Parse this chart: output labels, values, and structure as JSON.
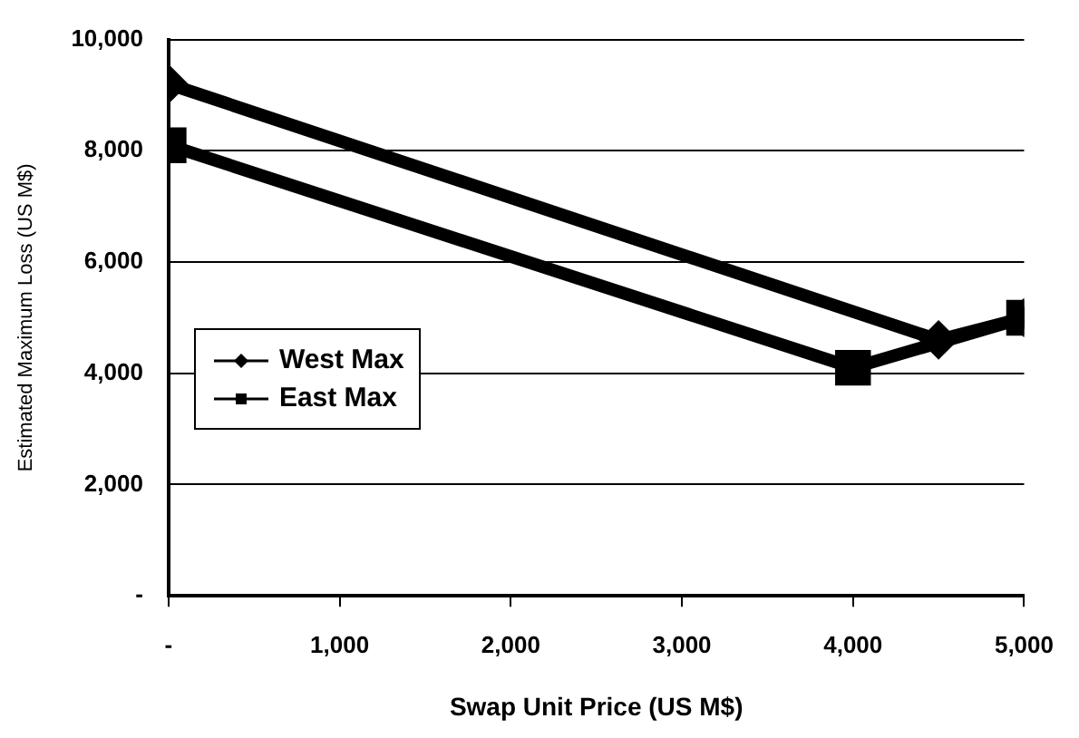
{
  "chart_data": {
    "type": "line",
    "xlabel": "Swap Unit Price (US M$)",
    "ylabel": "Estimated Maximum Loss (US M$)",
    "series": [
      {
        "name": "West Max",
        "color": "#000000",
        "marker": "diamond",
        "x": [
          0,
          4500,
          5000
        ],
        "values": [
          9200,
          4600,
          5000
        ]
      },
      {
        "name": "East Max",
        "color": "#000000",
        "marker": "square",
        "x": [
          0,
          4000,
          5000
        ],
        "values": [
          8100,
          4100,
          5000
        ]
      }
    ],
    "xlim": [
      0,
      5000
    ],
    "xticks": [
      {
        "value": 0,
        "label": "-"
      },
      {
        "value": 1000,
        "label": "1,000"
      },
      {
        "value": 2000,
        "label": "2,000"
      },
      {
        "value": 3000,
        "label": "3,000"
      },
      {
        "value": 4000,
        "label": "4,000"
      },
      {
        "value": 5000,
        "label": "5,000"
      }
    ],
    "ylim": [
      0,
      10000
    ],
    "yticks": [
      {
        "value": 0,
        "label": "-"
      },
      {
        "value": 2000,
        "label": "2,000"
      },
      {
        "value": 4000,
        "label": "4,000"
      },
      {
        "value": 6000,
        "label": "6,000"
      },
      {
        "value": 8000,
        "label": "8,000"
      },
      {
        "value": 10000,
        "label": "10,000"
      }
    ],
    "grid": "y",
    "legend": "left"
  }
}
